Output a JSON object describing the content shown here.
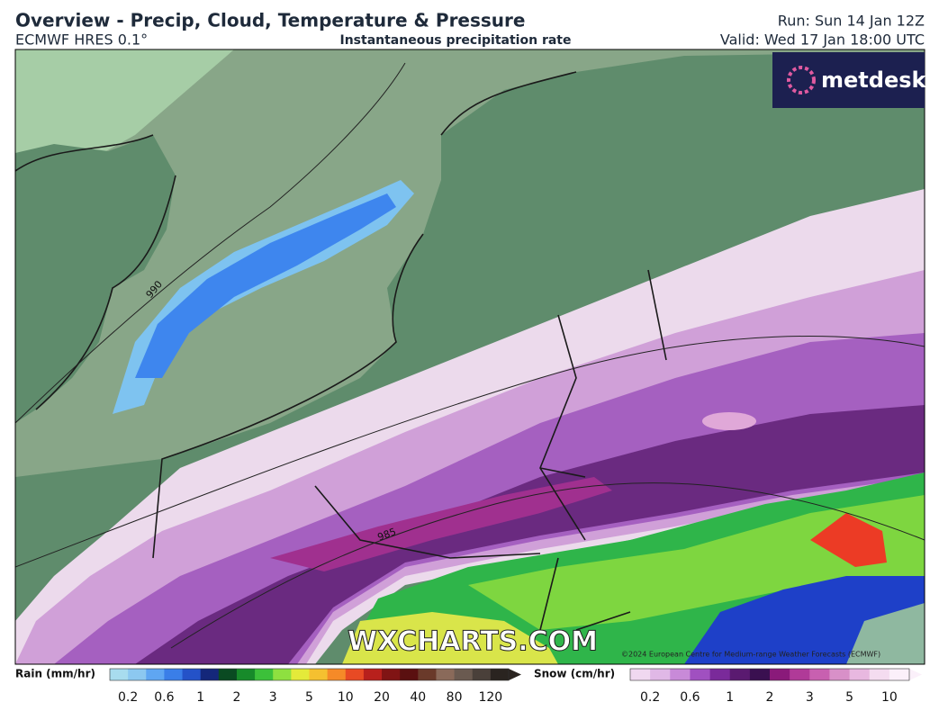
{
  "header": {
    "title": "Overview - Precip, Cloud, Temperature & Pressure",
    "model": "ECMWF HRES 0.1°",
    "subtitle": "Instantaneous precipitation rate",
    "run": "Run: Sun 14 Jan 12Z",
    "valid": "Valid: Wed 17 Jan 18:00 UTC"
  },
  "map": {
    "logo": "metdesk",
    "watermark": "WXCHARTS.COM",
    "copyright": "©2024 European Centre for Medium-range Weather Forecasts (ECMWF)",
    "isobars": [
      "990",
      "985"
    ]
  },
  "legend": {
    "rain": {
      "label": "Rain (mm/hr)",
      "ticks": [
        "0.2",
        "0.6",
        "1",
        "2",
        "3",
        "5",
        "10",
        "20",
        "40",
        "80",
        "120"
      ]
    },
    "snow": {
      "label": "Snow (cm/hr)",
      "ticks": [
        "0.2",
        "0.6",
        "1",
        "2",
        "3",
        "5",
        "10"
      ]
    }
  }
}
